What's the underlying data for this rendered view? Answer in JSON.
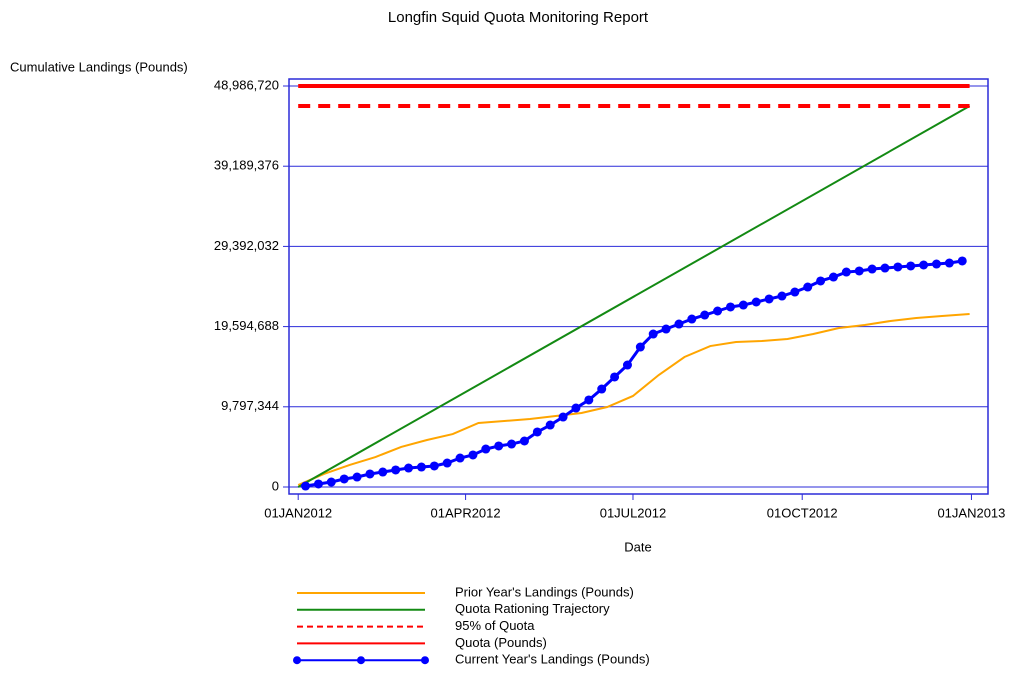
{
  "chart_data": {
    "type": "line",
    "title": "Longfin Squid Quota Monitoring Report",
    "y_label": "Cumulative Landings (Pounds)",
    "x_label": "Date",
    "xlim": [
      "2011-12-27",
      "2013-01-10"
    ],
    "ylim": [
      -855000,
      49842000
    ],
    "xticks": [
      {
        "value": "2012-01-01",
        "label": "01JAN2012"
      },
      {
        "value": "2012-04-01",
        "label": "01APR2012"
      },
      {
        "value": "2012-07-01",
        "label": "01JUL2012"
      },
      {
        "value": "2012-10-01",
        "label": "01OCT2012"
      },
      {
        "value": "2013-01-01",
        "label": "01JAN2013"
      }
    ],
    "yticks": [
      0,
      {
        "value": 9797344,
        "label": "9,797,344"
      },
      {
        "value": 19594688,
        "label": "19,594,688"
      },
      {
        "value": 29392032,
        "label": "29,392,032"
      },
      {
        "value": 39189376,
        "label": "39,189,376"
      },
      {
        "value": 48986720,
        "label": "48,986,720"
      }
    ],
    "grid": true,
    "frame_color": "#2b2bd9",
    "series": [
      {
        "name": "Prior Year's Landings (Pounds)",
        "color": "#ffa500",
        "width": 2,
        "dashed": false,
        "markers": false,
        "x": [
          "2012-01-01",
          "2012-01-15",
          "2012-01-29",
          "2012-02-12",
          "2012-02-26",
          "2012-03-11",
          "2012-03-25",
          "2012-04-08",
          "2012-04-22",
          "2012-05-06",
          "2012-05-20",
          "2012-06-03",
          "2012-06-17",
          "2012-07-01",
          "2012-07-15",
          "2012-07-29",
          "2012-08-12",
          "2012-08-26",
          "2012-09-09",
          "2012-09-23",
          "2012-10-07",
          "2012-10-21",
          "2012-11-04",
          "2012-11-18",
          "2012-12-02",
          "2012-12-16",
          "2012-12-31"
        ],
        "values": [
          240000,
          1590000,
          2690000,
          3660000,
          4890000,
          5740000,
          6470000,
          7820000,
          8060000,
          8310000,
          8670000,
          9040000,
          9770000,
          11120000,
          13680000,
          15880000,
          17220000,
          17710000,
          17840000,
          18080000,
          18690000,
          19420000,
          19790000,
          20280000,
          20650000,
          20890000,
          21130000
        ]
      },
      {
        "name": "Quota Rationing Trajectory",
        "color": "#138a13",
        "width": 2,
        "dashed": false,
        "markers": false,
        "x": [
          "2012-01-01",
          "2012-12-31"
        ],
        "values": [
          0,
          46537384
        ]
      },
      {
        "name": "95% of Quota",
        "color": "#ff0000",
        "width": 4,
        "dashed": true,
        "markers": false,
        "x": [
          "2012-01-01",
          "2012-12-31"
        ],
        "values": [
          46537384,
          46537384
        ]
      },
      {
        "name": "Quota (Pounds)",
        "color": "#ff0000",
        "width": 4,
        "dashed": false,
        "markers": false,
        "x": [
          "2012-01-01",
          "2012-12-31"
        ],
        "values": [
          48986720,
          48986720
        ]
      },
      {
        "name": "Current Year's Landings (Pounds)",
        "color": "#0000ff",
        "width": 3,
        "dashed": false,
        "markers": true,
        "x": [
          "2012-01-05",
          "2012-01-12",
          "2012-01-19",
          "2012-01-26",
          "2012-02-02",
          "2012-02-09",
          "2012-02-16",
          "2012-02-23",
          "2012-03-01",
          "2012-03-08",
          "2012-03-15",
          "2012-03-22",
          "2012-03-29",
          "2012-04-05",
          "2012-04-12",
          "2012-04-19",
          "2012-04-26",
          "2012-05-03",
          "2012-05-10",
          "2012-05-17",
          "2012-05-24",
          "2012-05-31",
          "2012-06-07",
          "2012-06-14",
          "2012-06-21",
          "2012-06-28",
          "2012-07-05",
          "2012-07-12",
          "2012-07-19",
          "2012-07-26",
          "2012-08-02",
          "2012-08-09",
          "2012-08-16",
          "2012-08-23",
          "2012-08-30",
          "2012-09-06",
          "2012-09-13",
          "2012-09-20",
          "2012-09-27",
          "2012-10-04",
          "2012-10-11",
          "2012-10-18",
          "2012-10-25",
          "2012-11-01",
          "2012-11-08",
          "2012-11-15",
          "2012-11-22",
          "2012-11-29",
          "2012-12-06",
          "2012-12-13",
          "2012-12-20",
          "2012-12-27"
        ],
        "values": [
          120000,
          370000,
          610000,
          980000,
          1220000,
          1590000,
          1830000,
          2080000,
          2320000,
          2440000,
          2570000,
          2930000,
          3540000,
          3910000,
          4640000,
          5010000,
          5250000,
          5620000,
          6720000,
          7570000,
          8550000,
          9650000,
          10630000,
          11970000,
          13440000,
          14900000,
          17100000,
          18690000,
          19300000,
          19910000,
          20520000,
          21010000,
          21500000,
          21990000,
          22230000,
          22600000,
          22970000,
          23330000,
          23820000,
          24430000,
          25170000,
          25650000,
          26260000,
          26390000,
          26630000,
          26750000,
          26880000,
          27000000,
          27120000,
          27240000,
          27360000,
          27610000
        ]
      }
    ]
  }
}
